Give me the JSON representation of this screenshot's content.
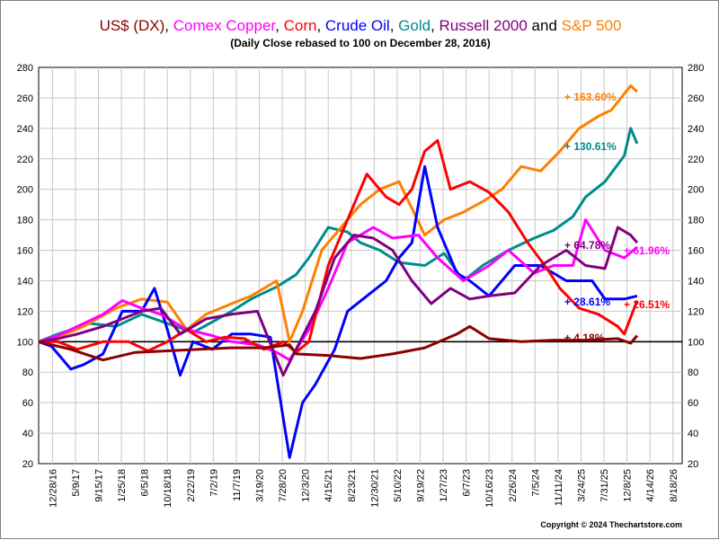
{
  "header": {
    "title_parts": [
      {
        "text": "US$ (DX)",
        "color": "#8B0000"
      },
      {
        "text": ", ",
        "color": "#000000"
      },
      {
        "text": "Comex Copper",
        "color": "#FF00FF"
      },
      {
        "text": ", ",
        "color": "#000000"
      },
      {
        "text": "Corn",
        "color": "#FF0000"
      },
      {
        "text": ", ",
        "color": "#000000"
      },
      {
        "text": "Crude Oil",
        "color": "#0000FF"
      },
      {
        "text": ", ",
        "color": "#000000"
      },
      {
        "text": "Gold",
        "color": "#008B8B"
      },
      {
        "text": ", ",
        "color": "#000000"
      },
      {
        "text": "Russell 2000",
        "color": "#800080"
      },
      {
        "text": " and ",
        "color": "#000000"
      },
      {
        "text": "S&P 500",
        "color": "#FF7F00"
      }
    ],
    "subtitle": "(Daily Close rebased to 100 on December 28, 2016)"
  },
  "copyright": "Copyright © 2024 Thechartstore.com",
  "chart_data": {
    "type": "line",
    "ylim": [
      20,
      280
    ],
    "yticks": [
      20,
      40,
      60,
      80,
      100,
      120,
      140,
      160,
      180,
      200,
      220,
      240,
      260,
      280
    ],
    "reference_line": 100,
    "grid": true,
    "x_tick_labels": [
      "12/28/16",
      "5/9/17",
      "9/15/17",
      "1/25/18",
      "6/5/18",
      "10/18/18",
      "2/22/19",
      "7/2/19",
      "11/7/19",
      "3/19/20",
      "7/28/20",
      "12/3/20",
      "4/15/21",
      "8/23/21",
      "12/30/21",
      "5/10/22",
      "9/19/22",
      "1/27/23",
      "6/7/23",
      "10/16/23",
      "2/26/24",
      "7/5/24",
      "11/11/24",
      "3/24/25",
      "7/31/25",
      "12/8/25",
      "4/14/26",
      "8/18/26"
    ],
    "series": [
      {
        "color": "#008B8B",
        "end_label": "+ 130.61%",
        "values": [
          [
            0,
            100
          ],
          [
            0.03,
            105
          ],
          [
            0.08,
            112
          ],
          [
            0.12,
            110
          ],
          [
            0.16,
            118
          ],
          [
            0.2,
            112
          ],
          [
            0.24,
            106
          ],
          [
            0.27,
            113
          ],
          [
            0.3,
            120
          ],
          [
            0.33,
            128
          ],
          [
            0.37,
            136
          ],
          [
            0.4,
            144
          ],
          [
            0.42,
            155
          ],
          [
            0.45,
            175
          ],
          [
            0.48,
            172
          ],
          [
            0.5,
            165
          ],
          [
            0.53,
            160
          ],
          [
            0.56,
            152
          ],
          [
            0.6,
            150
          ],
          [
            0.63,
            158
          ],
          [
            0.66,
            140
          ],
          [
            0.69,
            150
          ],
          [
            0.73,
            160
          ],
          [
            0.77,
            168
          ],
          [
            0.8,
            173
          ],
          [
            0.83,
            182
          ],
          [
            0.85,
            195
          ],
          [
            0.88,
            205
          ],
          [
            0.91,
            222
          ],
          [
            0.92,
            240
          ],
          [
            0.93,
            230
          ]
        ]
      },
      {
        "color": "#FF7F00",
        "end_label": "+ 163.60%",
        "values": [
          [
            0,
            100
          ],
          [
            0.03,
            103
          ],
          [
            0.07,
            110
          ],
          [
            0.12,
            122
          ],
          [
            0.16,
            128
          ],
          [
            0.2,
            126
          ],
          [
            0.23,
            108
          ],
          [
            0.26,
            118
          ],
          [
            0.3,
            125
          ],
          [
            0.33,
            130
          ],
          [
            0.37,
            140
          ],
          [
            0.39,
            100
          ],
          [
            0.41,
            120
          ],
          [
            0.44,
            160
          ],
          [
            0.47,
            175
          ],
          [
            0.5,
            190
          ],
          [
            0.53,
            200
          ],
          [
            0.56,
            205
          ],
          [
            0.6,
            170
          ],
          [
            0.63,
            180
          ],
          [
            0.66,
            185
          ],
          [
            0.69,
            192
          ],
          [
            0.72,
            200
          ],
          [
            0.75,
            215
          ],
          [
            0.78,
            212
          ],
          [
            0.81,
            225
          ],
          [
            0.84,
            240
          ],
          [
            0.87,
            248
          ],
          [
            0.89,
            252
          ],
          [
            0.92,
            268
          ],
          [
            0.93,
            264
          ]
        ]
      },
      {
        "color": "#0000FF",
        "end_label": "+ 28.61%",
        "values": [
          [
            0,
            100
          ],
          [
            0.02,
            97
          ],
          [
            0.05,
            82
          ],
          [
            0.07,
            85
          ],
          [
            0.1,
            92
          ],
          [
            0.13,
            120
          ],
          [
            0.16,
            120
          ],
          [
            0.18,
            135
          ],
          [
            0.2,
            108
          ],
          [
            0.22,
            78
          ],
          [
            0.24,
            100
          ],
          [
            0.27,
            95
          ],
          [
            0.3,
            105
          ],
          [
            0.33,
            105
          ],
          [
            0.36,
            103
          ],
          [
            0.38,
            50
          ],
          [
            0.39,
            24
          ],
          [
            0.41,
            60
          ],
          [
            0.43,
            72
          ],
          [
            0.46,
            95
          ],
          [
            0.48,
            120
          ],
          [
            0.51,
            130
          ],
          [
            0.54,
            140
          ],
          [
            0.56,
            155
          ],
          [
            0.58,
            165
          ],
          [
            0.6,
            215
          ],
          [
            0.62,
            175
          ],
          [
            0.65,
            145
          ],
          [
            0.67,
            140
          ],
          [
            0.7,
            130
          ],
          [
            0.74,
            150
          ],
          [
            0.78,
            150
          ],
          [
            0.82,
            140
          ],
          [
            0.86,
            140
          ],
          [
            0.88,
            128
          ],
          [
            0.91,
            128
          ],
          [
            0.93,
            130
          ]
        ]
      },
      {
        "color": "#FF00FF",
        "end_label": "+ 61.96%",
        "values": [
          [
            0,
            100
          ],
          [
            0.03,
            104
          ],
          [
            0.06,
            110
          ],
          [
            0.1,
            118
          ],
          [
            0.13,
            127
          ],
          [
            0.16,
            122
          ],
          [
            0.19,
            118
          ],
          [
            0.23,
            108
          ],
          [
            0.27,
            104
          ],
          [
            0.3,
            100
          ],
          [
            0.34,
            98
          ],
          [
            0.37,
            93
          ],
          [
            0.39,
            88
          ],
          [
            0.42,
            108
          ],
          [
            0.45,
            135
          ],
          [
            0.48,
            165
          ],
          [
            0.52,
            175
          ],
          [
            0.55,
            168
          ],
          [
            0.59,
            170
          ],
          [
            0.62,
            155
          ],
          [
            0.66,
            140
          ],
          [
            0.7,
            150
          ],
          [
            0.73,
            160
          ],
          [
            0.77,
            145
          ],
          [
            0.8,
            150
          ],
          [
            0.83,
            150
          ],
          [
            0.85,
            180
          ],
          [
            0.88,
            160
          ],
          [
            0.91,
            155
          ],
          [
            0.93,
            162
          ]
        ]
      },
      {
        "color": "#FF0000",
        "end_label": "+ 26.51%",
        "values": [
          [
            0,
            100
          ],
          [
            0.03,
            100
          ],
          [
            0.06,
            95
          ],
          [
            0.1,
            100
          ],
          [
            0.14,
            100
          ],
          [
            0.17,
            94
          ],
          [
            0.2,
            100
          ],
          [
            0.23,
            108
          ],
          [
            0.26,
            100
          ],
          [
            0.29,
            103
          ],
          [
            0.32,
            102
          ],
          [
            0.35,
            95
          ],
          [
            0.38,
            100
          ],
          [
            0.4,
            93
          ],
          [
            0.42,
            100
          ],
          [
            0.45,
            150
          ],
          [
            0.48,
            180
          ],
          [
            0.51,
            210
          ],
          [
            0.54,
            195
          ],
          [
            0.56,
            190
          ],
          [
            0.58,
            200
          ],
          [
            0.6,
            225
          ],
          [
            0.62,
            232
          ],
          [
            0.64,
            200
          ],
          [
            0.67,
            205
          ],
          [
            0.7,
            198
          ],
          [
            0.73,
            185
          ],
          [
            0.76,
            165
          ],
          [
            0.79,
            148
          ],
          [
            0.81,
            135
          ],
          [
            0.84,
            122
          ],
          [
            0.87,
            118
          ],
          [
            0.9,
            110
          ],
          [
            0.91,
            105
          ],
          [
            0.93,
            127
          ]
        ]
      },
      {
        "color": "#800080",
        "end_label": "+ 64.78%",
        "values": [
          [
            0,
            100
          ],
          [
            0.03,
            102
          ],
          [
            0.06,
            105
          ],
          [
            0.1,
            110
          ],
          [
            0.13,
            115
          ],
          [
            0.16,
            120
          ],
          [
            0.19,
            122
          ],
          [
            0.22,
            105
          ],
          [
            0.26,
            115
          ],
          [
            0.3,
            118
          ],
          [
            0.34,
            120
          ],
          [
            0.38,
            78
          ],
          [
            0.4,
            95
          ],
          [
            0.43,
            120
          ],
          [
            0.46,
            155
          ],
          [
            0.49,
            170
          ],
          [
            0.52,
            168
          ],
          [
            0.55,
            160
          ],
          [
            0.58,
            140
          ],
          [
            0.61,
            125
          ],
          [
            0.64,
            135
          ],
          [
            0.67,
            128
          ],
          [
            0.7,
            130
          ],
          [
            0.74,
            132
          ],
          [
            0.78,
            150
          ],
          [
            0.82,
            160
          ],
          [
            0.85,
            150
          ],
          [
            0.88,
            148
          ],
          [
            0.9,
            175
          ],
          [
            0.92,
            170
          ],
          [
            0.93,
            165
          ]
        ]
      },
      {
        "color": "#8B0000",
        "end_label": "+ 4.18%",
        "values": [
          [
            0,
            100
          ],
          [
            0.05,
            95
          ],
          [
            0.1,
            88
          ],
          [
            0.15,
            93
          ],
          [
            0.2,
            94
          ],
          [
            0.25,
            95
          ],
          [
            0.3,
            96
          ],
          [
            0.35,
            96
          ],
          [
            0.39,
            98
          ],
          [
            0.4,
            92
          ],
          [
            0.45,
            91
          ],
          [
            0.5,
            89
          ],
          [
            0.55,
            92
          ],
          [
            0.6,
            96
          ],
          [
            0.65,
            105
          ],
          [
            0.67,
            110
          ],
          [
            0.7,
            102
          ],
          [
            0.75,
            100
          ],
          [
            0.8,
            101
          ],
          [
            0.85,
            101
          ],
          [
            0.9,
            102
          ],
          [
            0.92,
            99
          ],
          [
            0.93,
            104
          ]
        ]
      }
    ]
  }
}
